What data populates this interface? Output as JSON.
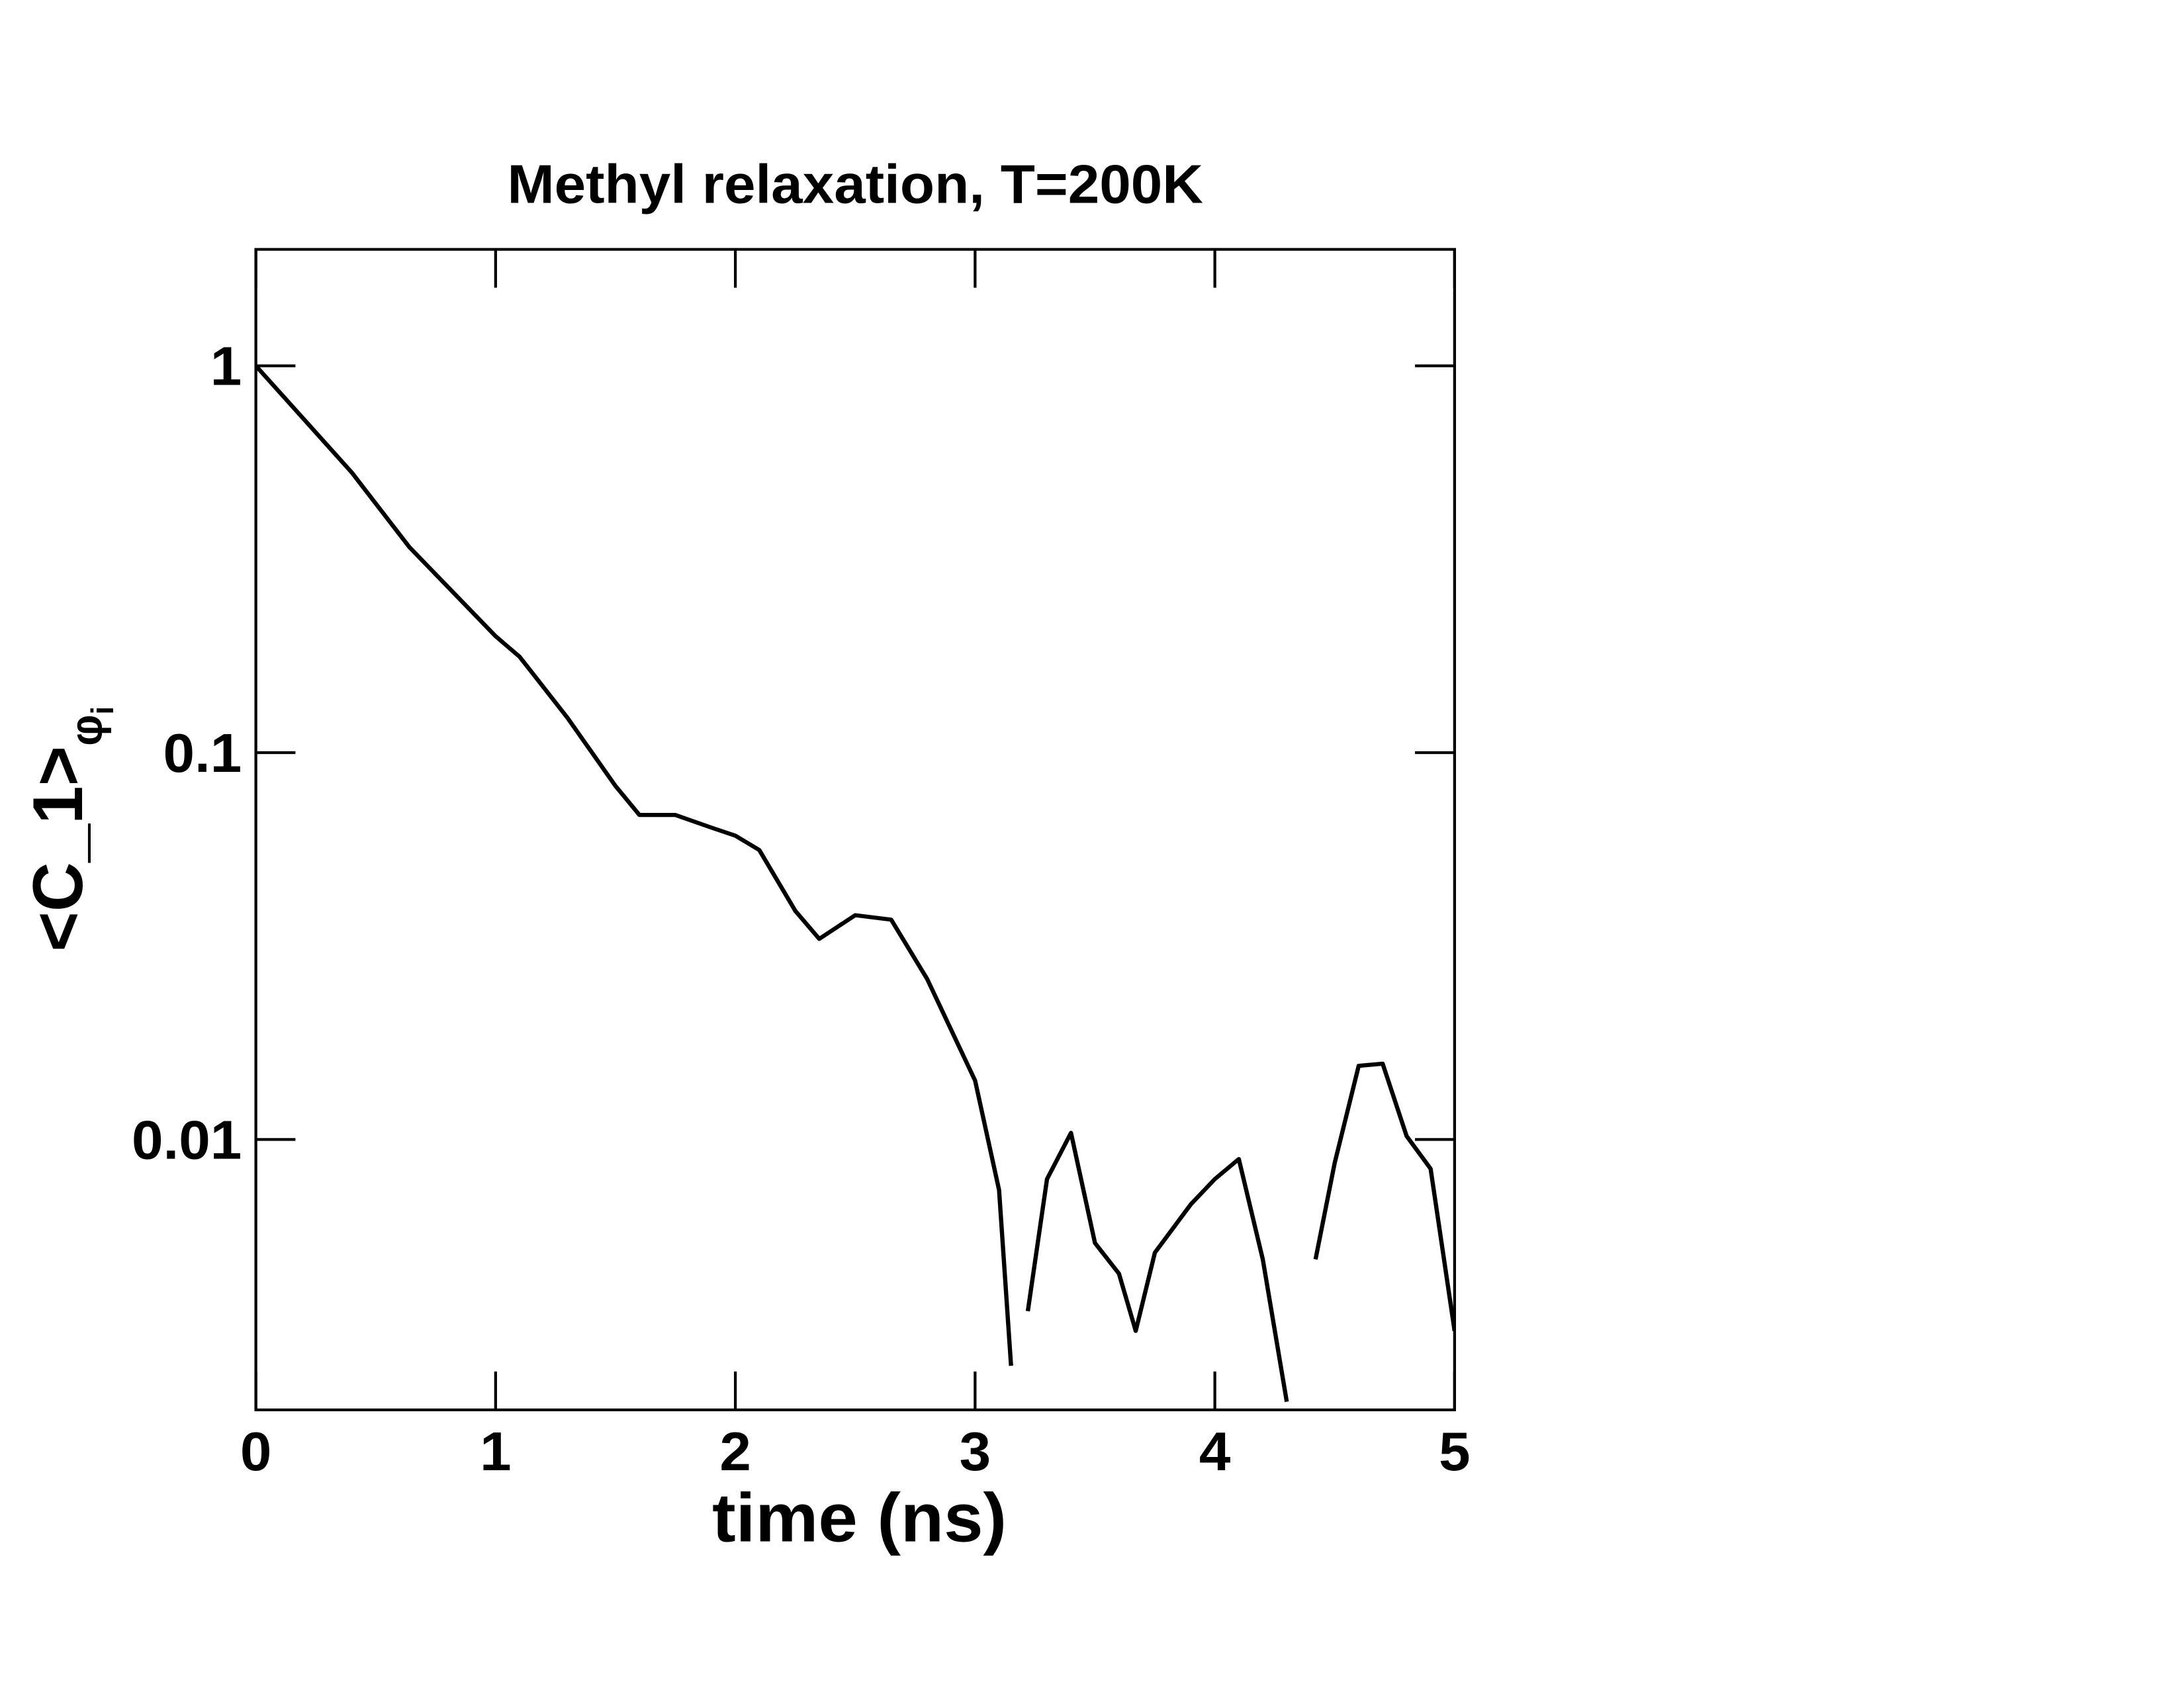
{
  "chart_data": {
    "type": "line",
    "title": "Methyl relaxation, T=200K",
    "x_label": "time (ns)",
    "y_label": "<C_1>",
    "y_label_subscript": [
      "φ",
      "i"
    ],
    "log_y": true,
    "grid": false,
    "xlim": [
      0,
      5
    ],
    "xticks": [
      0,
      1,
      2,
      3,
      4,
      5
    ],
    "ylim": [
      0.002,
      2
    ],
    "yticks": [
      0.01,
      0.1,
      1
    ],
    "x": [
      0,
      0.4,
      0.64,
      1.0,
      1.1,
      1.3,
      1.5,
      1.6,
      1.75,
      1.9,
      2.0,
      2.1,
      2.25,
      2.35,
      2.5,
      2.65,
      2.8,
      3.0,
      3.1,
      3.15,
      3.17,
      3.22,
      3.3,
      3.4,
      3.5,
      3.6,
      3.67,
      3.75,
      3.9,
      4.0,
      4.1,
      4.2,
      4.3,
      4.35,
      4.42,
      4.5,
      4.6,
      4.7,
      4.8,
      4.9,
      5.0
    ],
    "series": [
      {
        "name": "C_1",
        "color": "#000000",
        "values": [
          1,
          0.53,
          0.34,
          0.2,
          0.177,
          0.123,
          0.082,
          0.069,
          0.069,
          0.064,
          0.061,
          0.056,
          0.039,
          0.033,
          0.038,
          0.037,
          0.026,
          0.0142,
          0.0074,
          0.0026,
          null,
          0.0036,
          0.0079,
          0.0104,
          0.0054,
          0.0045,
          0.0032,
          0.0051,
          0.0068,
          0.0079,
          0.0089,
          0.0049,
          0.0021,
          null,
          0.0049,
          0.0087,
          0.0155,
          0.0157,
          0.0102,
          0.0084,
          0.0032
        ]
      }
    ]
  }
}
